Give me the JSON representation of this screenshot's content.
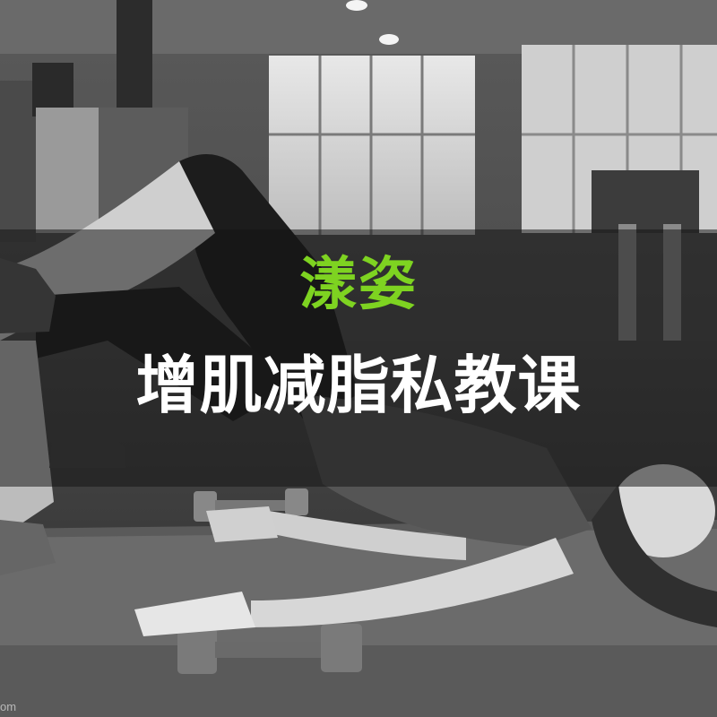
{
  "banner": {
    "brand_name": "漾姿",
    "brand_color": "#7ed321",
    "headline": "增肌减脂私教课",
    "overlay_color": "#141414"
  },
  "watermark": {
    "text": "om"
  },
  "photo": {
    "icon_names": [
      "dumbbell-icon",
      "exercise-mat-icon",
      "sneaker-icon",
      "gym-window-icon",
      "ceiling-light-icon"
    ]
  }
}
